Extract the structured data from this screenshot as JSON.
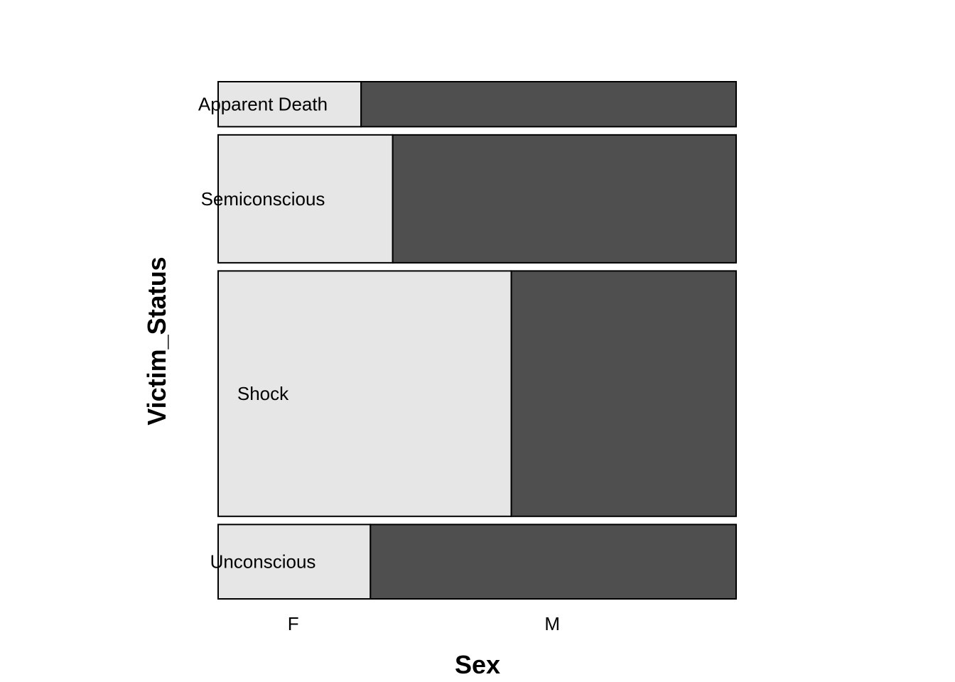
{
  "chart_data": {
    "type": "mosaic",
    "xlabel": "Sex",
    "ylabel": "Victim_Status",
    "categories": [
      "F",
      "M"
    ],
    "rows": [
      {
        "name": "Apparent Death",
        "share": 0.095,
        "f_fraction": 0.276
      },
      {
        "name": "Semiconscious",
        "share": 0.27,
        "f_fraction": 0.337
      },
      {
        "name": "Shock",
        "share": 0.518,
        "f_fraction": 0.566
      },
      {
        "name": "Unconscious",
        "share": 0.157,
        "f_fraction": 0.294
      }
    ],
    "x_tick_positions": [
      0.145,
      0.645
    ],
    "colors": {
      "F": "#e6e6e6",
      "M": "#4f4f4f",
      "border": "#000000"
    }
  }
}
